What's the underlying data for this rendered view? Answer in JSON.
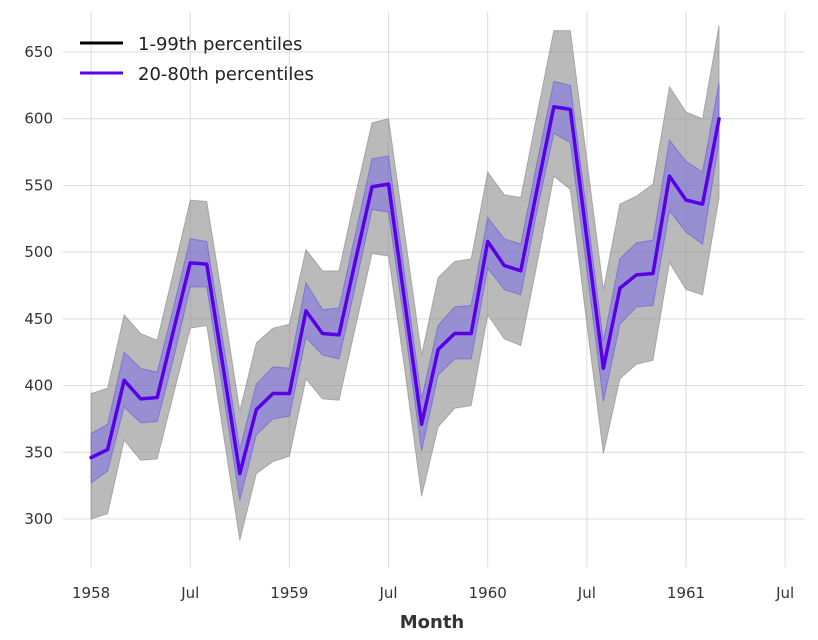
{
  "chart_data": {
    "type": "line",
    "title": "",
    "xlabel": "Month",
    "ylabel": "",
    "x_start": "1958-01",
    "x_ticks": [
      {
        "label": "1958",
        "month_index": 0
      },
      {
        "label": "Jul",
        "month_index": 6
      },
      {
        "label": "1959",
        "month_index": 12
      },
      {
        "label": "Jul",
        "month_index": 18
      },
      {
        "label": "1960",
        "month_index": 24
      },
      {
        "label": "Jul",
        "month_index": 30
      },
      {
        "label": "1961",
        "month_index": 36
      },
      {
        "label": "Jul",
        "month_index": 42
      }
    ],
    "xlim": [
      -1.7,
      43.2
    ],
    "ylim": [
      264,
      680
    ],
    "y_ticks": [
      300,
      350,
      400,
      450,
      500,
      550,
      600,
      650
    ],
    "grid": true,
    "legend": {
      "placement": "top-left",
      "entries": [
        {
          "label": "1-99th percentiles",
          "color": "#000000"
        },
        {
          "label": "20-80th percentiles",
          "color": "#5800e6"
        }
      ]
    },
    "series": [
      {
        "name": "median",
        "color": "#5800e6",
        "values": [
          346,
          352,
          404,
          390,
          391,
          442,
          492,
          491,
          413,
          334,
          382,
          394,
          394,
          456,
          439,
          438,
          494,
          549,
          551,
          461,
          371,
          427,
          439,
          439,
          508,
          490,
          486,
          548,
          609,
          607,
          510,
          413,
          473,
          483,
          484,
          557,
          539,
          536,
          600
        ]
      }
    ],
    "bands": [
      {
        "name": "1-99th percentiles",
        "color": "#9a9a9a",
        "lower": [
          300,
          304,
          359,
          344,
          345,
          394,
          443,
          445,
          364,
          284,
          334,
          343,
          347,
          405,
          390,
          389,
          444,
          499,
          497,
          410,
          317,
          369,
          383,
          385,
          453,
          435,
          430,
          492,
          557,
          547,
          446,
          349,
          405,
          416,
          419,
          492,
          472,
          468,
          541
        ],
        "upper": [
          394,
          398,
          453,
          439,
          434,
          486,
          539,
          538,
          461,
          381,
          432,
          443,
          446,
          502,
          486,
          486,
          543,
          597,
          600,
          512,
          423,
          481,
          493,
          495,
          560,
          543,
          541,
          604,
          666,
          666,
          569,
          472,
          536,
          542,
          551,
          624,
          605,
          600,
          670
        ]
      },
      {
        "name": "20-80th percentiles",
        "color": "#6e5cf0",
        "lower": [
          327,
          336,
          384,
          372,
          373,
          421,
          474,
          474,
          394,
          314,
          363,
          375,
          377,
          436,
          423,
          420,
          475,
          532,
          530,
          442,
          351,
          408,
          420,
          420,
          488,
          472,
          468,
          532,
          589,
          582,
          487,
          388,
          446,
          459,
          460,
          531,
          515,
          506,
          583
        ],
        "upper": [
          364,
          371,
          425,
          413,
          410,
          459,
          510,
          508,
          432,
          352,
          401,
          414,
          413,
          477,
          457,
          458,
          514,
          570,
          572,
          481,
          390,
          445,
          459,
          460,
          526,
          510,
          506,
          568,
          628,
          625,
          530,
          433,
          495,
          507,
          509,
          584,
          568,
          560,
          627
        ]
      }
    ]
  }
}
